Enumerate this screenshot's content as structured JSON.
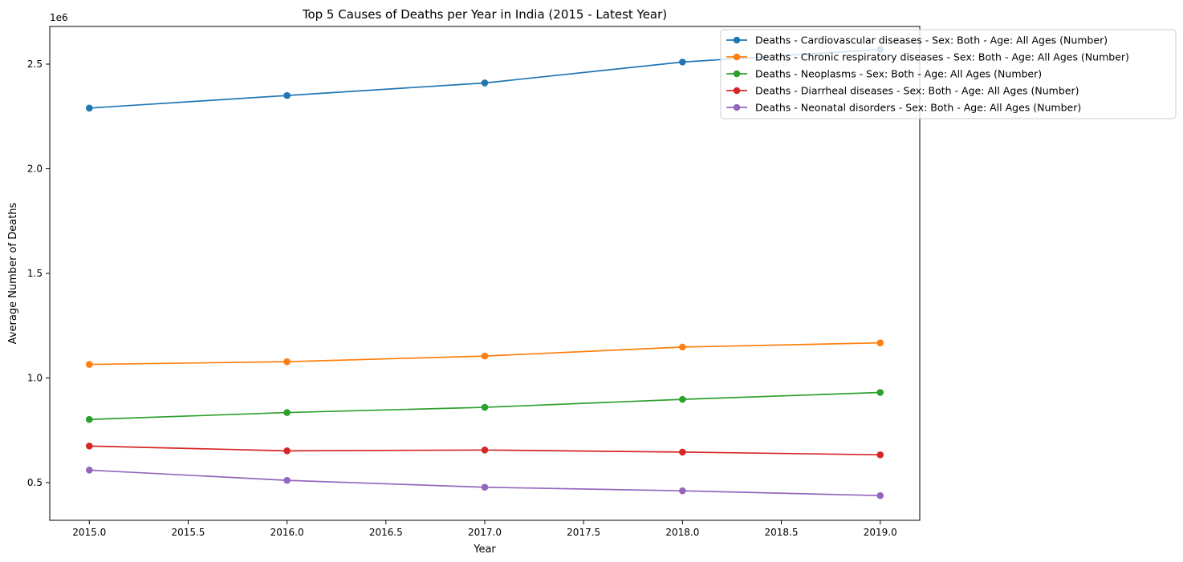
{
  "chart_data": {
    "type": "line",
    "title": "Top 5 Causes of Deaths per Year in India (2015 - Latest Year)",
    "xlabel": "Year",
    "ylabel": "Average Number of Deaths",
    "y_offset_label": "1e6",
    "x": [
      2015,
      2016,
      2017,
      2018,
      2019
    ],
    "xlim": [
      2014.8,
      2019.2
    ],
    "ylim": [
      320000,
      2680000
    ],
    "x_ticks": [
      2015,
      2015.5,
      2016,
      2016.5,
      2017,
      2017.5,
      2018,
      2018.5,
      2019
    ],
    "x_tick_labels": [
      "2015.0",
      "2015.5",
      "2016.0",
      "2016.5",
      "2017.0",
      "2017.5",
      "2018.0",
      "2018.5",
      "2019.0"
    ],
    "y_ticks": [
      500000,
      1000000,
      1500000,
      2000000,
      2500000
    ],
    "y_tick_labels": [
      "0.5",
      "1.0",
      "1.5",
      "2.0",
      "2.5"
    ],
    "grid": false,
    "legend_position": "top-right",
    "series": [
      {
        "name": "Deaths - Cardiovascular diseases - Sex: Both - Age: All Ages (Number)",
        "color": "#1f77b4",
        "values": [
          2290000,
          2350000,
          2410000,
          2510000,
          2570000
        ]
      },
      {
        "name": "Deaths - Chronic respiratory diseases - Sex: Both - Age: All Ages (Number)",
        "color": "#ff7f0e",
        "values": [
          1065000,
          1078000,
          1105000,
          1148000,
          1168000
        ]
      },
      {
        "name": "Deaths - Neoplasms - Sex: Both - Age: All Ages (Number)",
        "color": "#2ca02c",
        "values": [
          802000,
          835000,
          860000,
          898000,
          931000
        ]
      },
      {
        "name": "Deaths - Diarrheal diseases - Sex: Both - Age: All Ages (Number)",
        "color": "#d62728",
        "values": [
          675000,
          652000,
          656000,
          646000,
          633000
        ]
      },
      {
        "name": "Deaths - Neonatal disorders - Sex: Both - Age: All Ages (Number)",
        "color": "#9467bd",
        "values": [
          560000,
          511000,
          478000,
          461000,
          438000
        ]
      }
    ]
  }
}
